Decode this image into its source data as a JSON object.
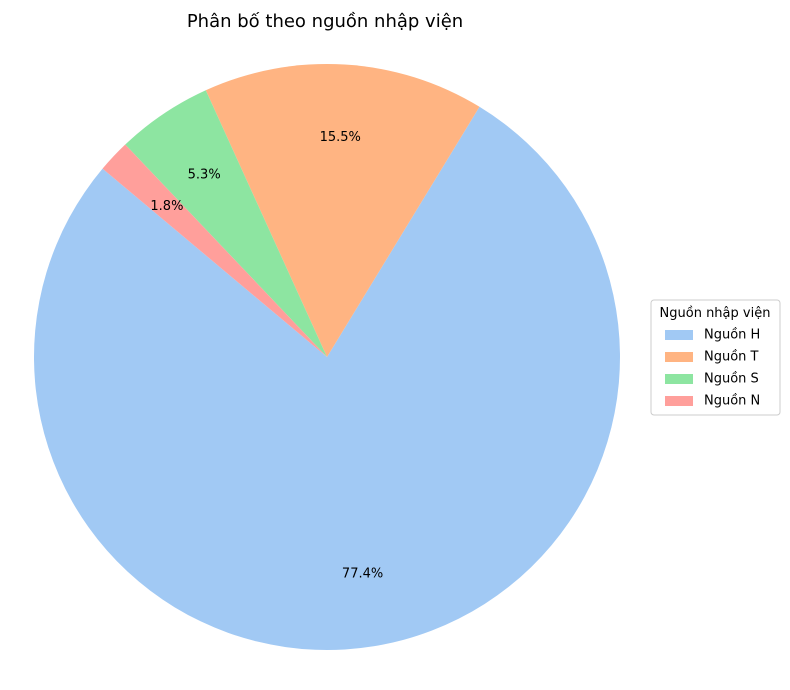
{
  "chart_data": {
    "type": "pie",
    "title": "Phân bố theo nguồn nhập viện",
    "categories": [
      "Nguồn H",
      "Nguồn T",
      "Nguồn S",
      "Nguồn N"
    ],
    "values": [
      77.4,
      15.5,
      5.3,
      1.8
    ],
    "labels": [
      "77.4%",
      "15.5%",
      "5.3%",
      "1.8%"
    ],
    "colors": [
      "#a1c9f4",
      "#ffb482",
      "#8de5a1",
      "#ff9f9b"
    ],
    "start_angle_deg": 140,
    "direction": "counterclockwise",
    "legend": {
      "title": "Nguồn nhập viện",
      "placement": "center-right"
    }
  }
}
